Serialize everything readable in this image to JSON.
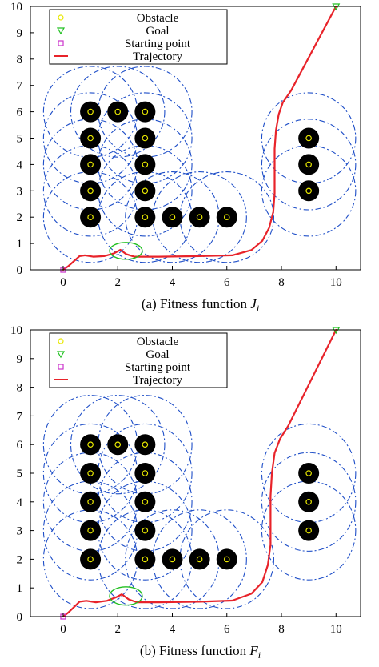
{
  "chart_data": [
    {
      "type": "scatter",
      "caption": "(a) Fitness function ",
      "caption_symbol": "J",
      "caption_subscript": "i",
      "xlim": [
        -1.2,
        10.9
      ],
      "ylim": [
        0,
        10
      ],
      "xticks": [
        0,
        2,
        4,
        6,
        8,
        10
      ],
      "yticks": [
        0,
        1,
        2,
        3,
        4,
        5,
        6,
        7,
        8,
        9,
        10
      ],
      "grid": false,
      "legend_position": "top-left",
      "legend": [
        {
          "label": "Obstacle",
          "marker": "circle",
          "color": "#e8e800"
        },
        {
          "label": "Goal",
          "marker": "triangle-down",
          "color": "#22c022"
        },
        {
          "label": "Starting point",
          "marker": "square",
          "color": "#cc33cc"
        },
        {
          "label": "Trajectory",
          "marker": "line",
          "color": "#e8232a"
        }
      ],
      "obstacles": [
        [
          1,
          6
        ],
        [
          2,
          6
        ],
        [
          3,
          6
        ],
        [
          1,
          5
        ],
        [
          3,
          5
        ],
        [
          1,
          4
        ],
        [
          3,
          4
        ],
        [
          1,
          3
        ],
        [
          3,
          3
        ],
        [
          1,
          2
        ],
        [
          3,
          2
        ],
        [
          4,
          2
        ],
        [
          5,
          2
        ],
        [
          6,
          2
        ],
        [
          9,
          5
        ],
        [
          9,
          4
        ],
        [
          9,
          3
        ]
      ],
      "start": [
        0,
        0
      ],
      "goal": [
        10,
        10
      ],
      "trajectory": [
        [
          0,
          0
        ],
        [
          0.2,
          0.15
        ],
        [
          0.45,
          0.38
        ],
        [
          0.6,
          0.52
        ],
        [
          0.8,
          0.55
        ],
        [
          1.1,
          0.5
        ],
        [
          1.5,
          0.52
        ],
        [
          1.85,
          0.62
        ],
        [
          2.1,
          0.76
        ],
        [
          2.3,
          0.6
        ],
        [
          2.6,
          0.5
        ],
        [
          3.5,
          0.5
        ],
        [
          5,
          0.52
        ],
        [
          6.2,
          0.55
        ],
        [
          6.9,
          0.75
        ],
        [
          7.3,
          1.1
        ],
        [
          7.55,
          1.6
        ],
        [
          7.7,
          2.2
        ],
        [
          7.75,
          2.9
        ],
        [
          7.75,
          3.8
        ],
        [
          7.75,
          4.6
        ],
        [
          7.8,
          5.3
        ],
        [
          7.9,
          5.9
        ],
        [
          8.05,
          6.35
        ],
        [
          8.35,
          6.8
        ],
        [
          10,
          10
        ]
      ],
      "highlight_ellipse": {
        "center": [
          2.3,
          0.72
        ],
        "rx": 0.6,
        "ry": 0.32,
        "color": "#22c022"
      },
      "colors": {
        "obstacle_fill": "#000000",
        "obstacle_center": "#e8e800",
        "safety_circle": "#1f4fc8",
        "trajectory": "#e8232a"
      }
    },
    {
      "type": "scatter",
      "caption": "(b) Fitness function ",
      "caption_symbol": "F",
      "caption_subscript": "i",
      "xlim": [
        -1.2,
        10.9
      ],
      "ylim": [
        0,
        10
      ],
      "xticks": [
        0,
        2,
        4,
        6,
        8,
        10
      ],
      "yticks": [
        0,
        1,
        2,
        3,
        4,
        5,
        6,
        7,
        8,
        9,
        10
      ],
      "grid": false,
      "legend_position": "top-left",
      "legend": [
        {
          "label": "Obstacle",
          "marker": "circle",
          "color": "#e8e800"
        },
        {
          "label": "Goal",
          "marker": "triangle-down",
          "color": "#22c022"
        },
        {
          "label": "Starting point",
          "marker": "square",
          "color": "#cc33cc"
        },
        {
          "label": "Trajectory",
          "marker": "line",
          "color": "#e8232a"
        }
      ],
      "obstacles": [
        [
          1,
          6
        ],
        [
          2,
          6
        ],
        [
          3,
          6
        ],
        [
          1,
          5
        ],
        [
          3,
          5
        ],
        [
          1,
          4
        ],
        [
          3,
          4
        ],
        [
          1,
          3
        ],
        [
          3,
          3
        ],
        [
          1,
          2
        ],
        [
          3,
          2
        ],
        [
          4,
          2
        ],
        [
          5,
          2
        ],
        [
          6,
          2
        ],
        [
          9,
          5
        ],
        [
          9,
          4
        ],
        [
          9,
          3
        ]
      ],
      "start": [
        0,
        0
      ],
      "goal": [
        10,
        10
      ],
      "trajectory": [
        [
          0,
          0
        ],
        [
          0.2,
          0.15
        ],
        [
          0.45,
          0.38
        ],
        [
          0.6,
          0.52
        ],
        [
          0.85,
          0.55
        ],
        [
          1.2,
          0.5
        ],
        [
          1.6,
          0.55
        ],
        [
          1.95,
          0.68
        ],
        [
          2.15,
          0.78
        ],
        [
          2.4,
          0.6
        ],
        [
          2.7,
          0.5
        ],
        [
          3.5,
          0.5
        ],
        [
          5,
          0.52
        ],
        [
          6.2,
          0.56
        ],
        [
          6.9,
          0.8
        ],
        [
          7.3,
          1.2
        ],
        [
          7.5,
          1.8
        ],
        [
          7.6,
          2.5
        ],
        [
          7.6,
          3.3
        ],
        [
          7.6,
          4.2
        ],
        [
          7.65,
          5.0
        ],
        [
          7.75,
          5.7
        ],
        [
          7.95,
          6.2
        ],
        [
          8.25,
          6.65
        ],
        [
          10,
          10
        ]
      ],
      "highlight_ellipse": {
        "center": [
          2.3,
          0.72
        ],
        "rx": 0.6,
        "ry": 0.32,
        "color": "#22c022"
      },
      "colors": {
        "obstacle_fill": "#000000",
        "obstacle_center": "#e8e800",
        "safety_circle": "#1f4fc8",
        "trajectory": "#e8232a"
      }
    }
  ]
}
